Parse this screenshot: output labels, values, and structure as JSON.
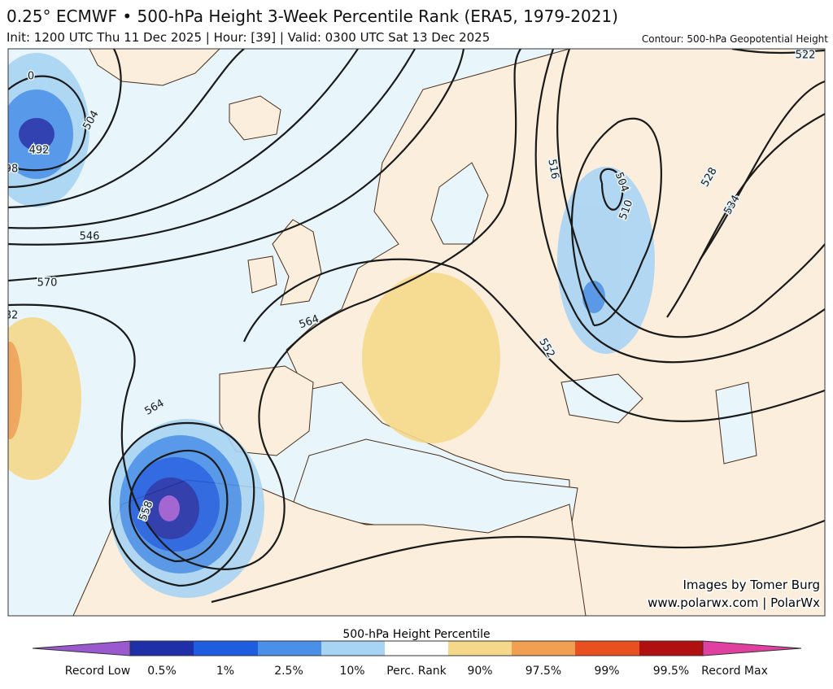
{
  "header": {
    "title": "0.25° ECMWF • 500-hPa Height 3-Week Percentile Rank (ERA5, 1979-2021)",
    "subtitle": "Init: 1200 UTC Thu 11 Dec 2025 | Hour: [39] | Valid: 0300 UTC Sat 13 Dec 2025",
    "contour_note": "Contour: 500-hPa Geopotential Height"
  },
  "map": {
    "contour_labels": [
      0,
      504,
      492,
      98,
      546,
      570,
      82,
      564,
      564,
      558,
      516,
      504,
      510,
      528,
      534,
      552,
      522
    ]
  },
  "credits": [
    "Images by Tomer Burg",
    "www.polarwx.com | PolarWx"
  ],
  "colorbar": {
    "title": "500-hPa Height Percentile",
    "labels": [
      "Record Low",
      "0.5%",
      "1%",
      "2.5%",
      "10%",
      "Perc. Rank",
      "90%",
      "97.5%",
      "99%",
      "99.5%",
      "Record Max"
    ]
  }
}
